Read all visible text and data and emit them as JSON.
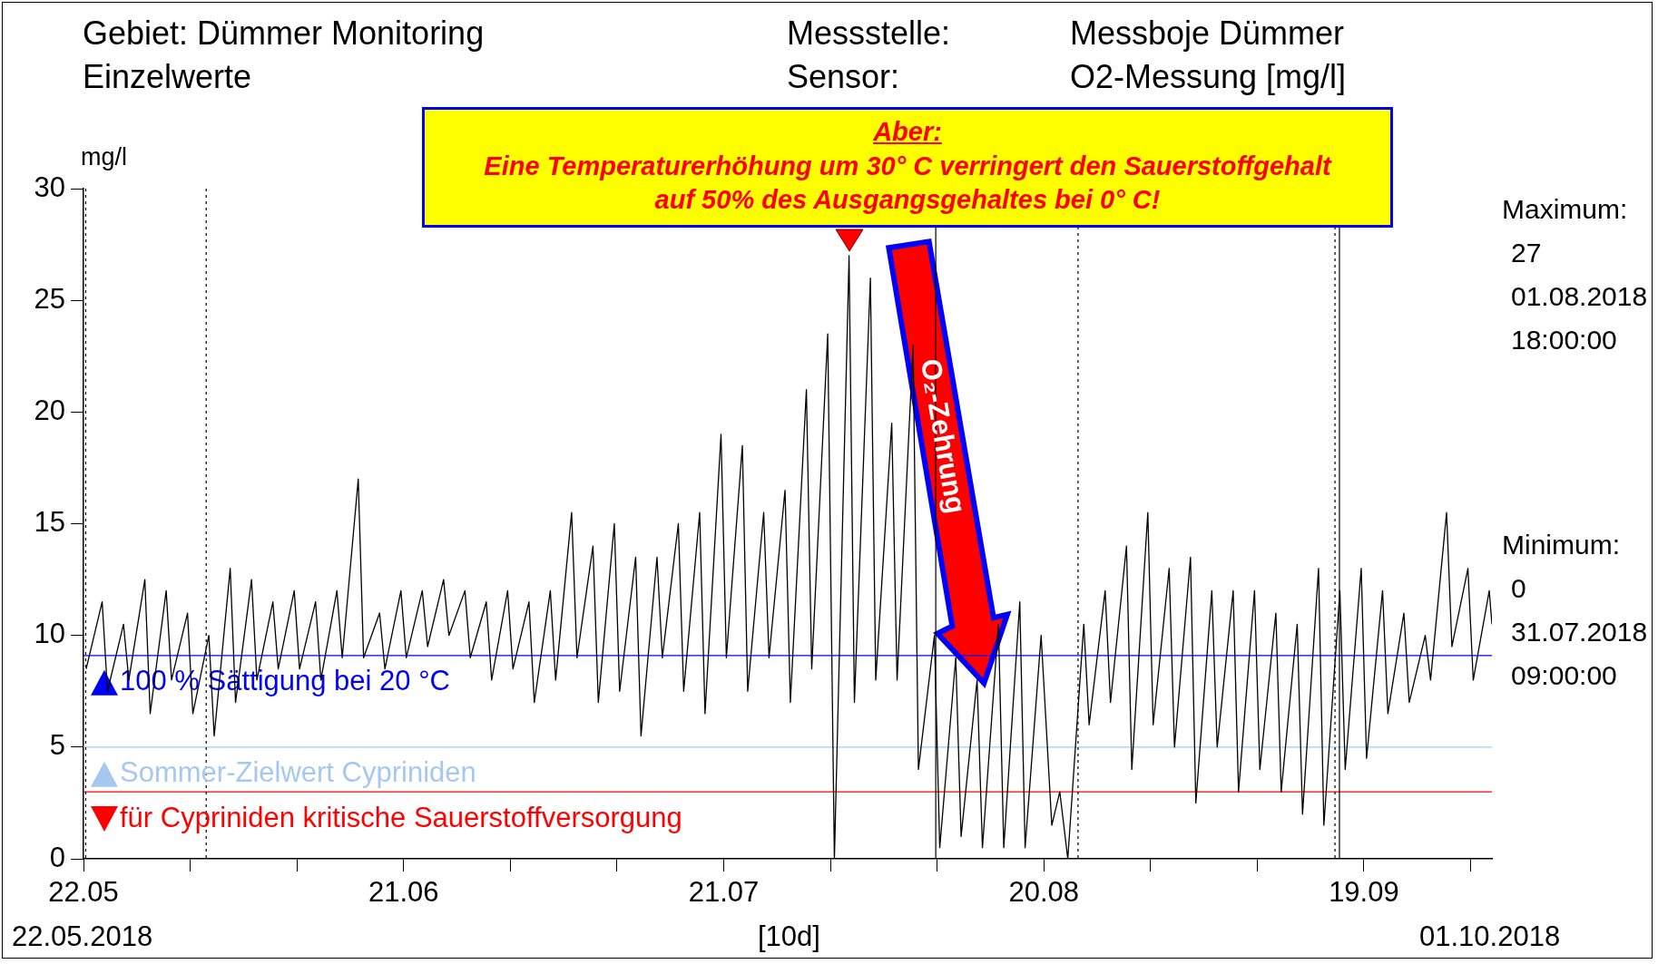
{
  "chart_data": {
    "type": "line",
    "title": "Gebiet: Dümmer Monitoring",
    "subtitle": "Einzelwerte",
    "ylabel": "mg/l",
    "xlabel": "[10d]",
    "annotations": [
      "Messstelle:",
      "Messboje Dümmer",
      "Sensor:",
      "O2-Messung [mg/l]",
      "Aber:",
      "Eine Temperaturerhöhung um 30° C verringert den Sauerstoffgehalt",
      "auf 50% des Ausgangsgehaltes bei 0° C!",
      "O₂-Zehrung",
      "Maximum:",
      "27",
      "01.08.2018",
      "18:00:00",
      "Minimum:",
      "0",
      "31.07.2018",
      "09:00:00",
      "22.05.2018",
      "01.10.2018"
    ],
    "x": [
      "2018-05-22T06:00",
      "2018-05-23T18:00",
      "2018-05-24T06:00",
      "2018-05-25T18:00",
      "2018-05-26T06:00",
      "2018-05-27T18:00",
      "2018-05-28T06:00",
      "2018-05-29T18:00",
      "2018-05-30T06:00",
      "2018-05-31T18:00",
      "2018-06-01T06:00",
      "2018-06-02T18:00",
      "2018-06-03T06:00",
      "2018-06-04T18:00",
      "2018-06-05T06:00",
      "2018-06-06T18:00",
      "2018-06-07T06:00",
      "2018-06-08T18:00",
      "2018-06-09T06:00",
      "2018-06-10T18:00",
      "2018-06-11T06:00",
      "2018-06-12T18:00",
      "2018-06-13T06:00",
      "2018-06-14T18:00",
      "2018-06-15T06:00",
      "2018-06-16T18:00",
      "2018-06-17T06:00",
      "2018-06-18T18:00",
      "2018-06-19T06:00",
      "2018-06-20T18:00",
      "2018-06-21T06:00",
      "2018-06-22T18:00",
      "2018-06-23T06:00",
      "2018-06-24T18:00",
      "2018-06-25T06:00",
      "2018-06-26T18:00",
      "2018-06-27T06:00",
      "2018-06-28T18:00",
      "2018-06-29T06:00",
      "2018-06-30T18:00",
      "2018-07-01T06:00",
      "2018-07-02T18:00",
      "2018-07-03T06:00",
      "2018-07-04T18:00",
      "2018-07-05T06:00",
      "2018-07-06T18:00",
      "2018-07-07T06:00",
      "2018-07-08T18:00",
      "2018-07-09T06:00",
      "2018-07-10T18:00",
      "2018-07-11T06:00",
      "2018-07-12T18:00",
      "2018-07-13T06:00",
      "2018-07-14T18:00",
      "2018-07-15T06:00",
      "2018-07-16T18:00",
      "2018-07-17T06:00",
      "2018-07-18T18:00",
      "2018-07-19T06:00",
      "2018-07-20T18:00",
      "2018-07-21T06:00",
      "2018-07-22T18:00",
      "2018-07-23T06:00",
      "2018-07-24T18:00",
      "2018-07-25T06:00",
      "2018-07-26T18:00",
      "2018-07-27T06:00",
      "2018-07-28T18:00",
      "2018-07-29T06:00",
      "2018-07-30T18:00",
      "2018-07-31T09:00",
      "2018-08-01T18:00",
      "2018-08-02T06:00",
      "2018-08-03T18:00",
      "2018-08-04T06:00",
      "2018-08-05T18:00",
      "2018-08-06T06:00",
      "2018-08-07T18:00",
      "2018-08-08T06:00",
      "2018-08-09T18:00",
      "2018-08-10T06:00",
      "2018-08-11T18:00",
      "2018-08-12T06:00",
      "2018-08-13T18:00",
      "2018-08-14T06:00",
      "2018-08-15T18:00",
      "2018-08-16T06:00",
      "2018-08-17T18:00",
      "2018-08-18T06:00",
      "2018-08-19T18:00",
      "2018-08-20T18:00",
      "2018-08-21T12:00",
      "2018-08-22T06:00",
      "2018-08-23T18:00",
      "2018-08-24T06:00",
      "2018-08-25T18:00",
      "2018-08-26T06:00",
      "2018-08-27T18:00",
      "2018-08-28T06:00",
      "2018-08-29T18:00",
      "2018-08-30T06:00",
      "2018-08-31T18:00",
      "2018-09-01T06:00",
      "2018-09-02T18:00",
      "2018-09-03T06:00",
      "2018-09-04T18:00",
      "2018-09-05T06:00",
      "2018-09-06T18:00",
      "2018-09-07T06:00",
      "2018-09-08T18:00",
      "2018-09-09T06:00",
      "2018-09-10T18:00",
      "2018-09-11T06:00",
      "2018-09-12T18:00",
      "2018-09-13T06:00",
      "2018-09-14T18:00",
      "2018-09-15T06:00",
      "2018-09-16T18:00",
      "2018-09-17T06:00",
      "2018-09-18T18:00",
      "2018-09-19T06:00",
      "2018-09-20T18:00",
      "2018-09-21T06:00",
      "2018-09-22T18:00",
      "2018-09-23T06:00",
      "2018-09-24T18:00",
      "2018-09-25T06:00",
      "2018-09-26T18:00",
      "2018-09-27T06:00",
      "2018-09-28T18:00",
      "2018-09-29T06:00",
      "2018-09-30T18:00",
      "2018-10-01T00:00"
    ],
    "series": [
      {
        "color": "#000000",
        "values": [
          8.5,
          11.5,
          7.5,
          10.5,
          8,
          12.5,
          6.5,
          12,
          8,
          11,
          6.5,
          10,
          5.5,
          13,
          7,
          12.5,
          8,
          11.5,
          8.5,
          12,
          8.5,
          11.5,
          8,
          12,
          9,
          17,
          9,
          11,
          8.5,
          12,
          9,
          12,
          9.5,
          12.5,
          10,
          12,
          9,
          11.5,
          8,
          12,
          8.5,
          11.5,
          7,
          12,
          8,
          15.5,
          9,
          14,
          7,
          15,
          7.5,
          13.5,
          5.5,
          13.5,
          9,
          15,
          7.5,
          15.5,
          6.5,
          19,
          9,
          18.5,
          7.5,
          15.5,
          9,
          16.5,
          7,
          21,
          8.5,
          23.5,
          0,
          27,
          7,
          26,
          8,
          19.5,
          8,
          23,
          4,
          10,
          0.5,
          9,
          1,
          8,
          0.5,
          10.5,
          0.5,
          11.5,
          0.5,
          10,
          1.5,
          3,
          0,
          10.5,
          6,
          12,
          7,
          14,
          4,
          15.5,
          6,
          13,
          5,
          13.5,
          2.5,
          12,
          5,
          12,
          3,
          12,
          4,
          11,
          3,
          10.5,
          2,
          13,
          1.5,
          12,
          4,
          13,
          4.5,
          12,
          6.5,
          11,
          7,
          10,
          8,
          15.5,
          9.5,
          13,
          8,
          12,
          10.5
        ]
      }
    ],
    "xlim": [
      "2018-05-22",
      "2018-10-01"
    ],
    "xticks": [
      {
        "value": "2018-05-22",
        "label": "22.05"
      },
      {
        "value": "2018-06-01",
        "label": null
      },
      {
        "value": "2018-06-11",
        "label": null
      },
      {
        "value": "2018-06-21",
        "label": "21.06"
      },
      {
        "value": "2018-07-01",
        "label": null
      },
      {
        "value": "2018-07-11",
        "label": null
      },
      {
        "value": "2018-07-21",
        "label": "21.07"
      },
      {
        "value": "2018-07-31",
        "label": null
      },
      {
        "value": "2018-08-10",
        "label": null
      },
      {
        "value": "2018-08-20",
        "label": "20.08"
      },
      {
        "value": "2018-08-30",
        "label": null
      },
      {
        "value": "2018-09-09",
        "label": null
      },
      {
        "value": "2018-09-19",
        "label": "19.09"
      },
      {
        "value": "2018-09-29",
        "label": null
      }
    ],
    "ylim": [
      0,
      30
    ],
    "yticks": [
      0,
      5,
      10,
      15,
      20,
      25,
      30
    ],
    "ref_lines": [
      {
        "axis": "y",
        "value": 9.1,
        "label": "100 % Sättigung bei 20 °C",
        "color": "#0000ff"
      },
      {
        "axis": "y",
        "value": 5,
        "label": "Sommer-Zielwert Cypriniden",
        "color": "#a6c8f0"
      },
      {
        "axis": "y",
        "value": 3,
        "label": "für Cypriniden kritische Sauerstoffversorgung",
        "color": "#ff0000"
      },
      {
        "axis": "x",
        "value": "2018-05-22T05:00",
        "color": "#000000",
        "line_style": "dotted"
      },
      {
        "axis": "x",
        "value": "2018-06-02T12:00",
        "color": "#000000",
        "line_style": "dotted"
      },
      {
        "axis": "x",
        "value": "2018-08-09T21:00",
        "color": "#000000",
        "line_style": "solid"
      },
      {
        "axis": "x",
        "value": "2018-08-23T05:00",
        "color": "#000000",
        "line_style": "dotted"
      },
      {
        "axis": "x",
        "value": "2018-09-16T07:00",
        "color": "#000000",
        "line_style": "dotted"
      },
      {
        "axis": "x",
        "value": "2018-09-16T17:00",
        "color": "#000000",
        "line_style": "solid"
      }
    ],
    "grid": false,
    "legend": "bottom left",
    "marker": "none",
    "line_style": "solid"
  }
}
